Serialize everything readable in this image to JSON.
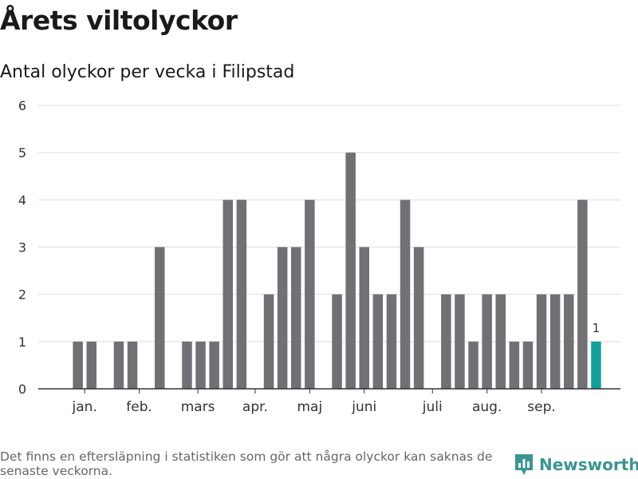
{
  "title": "Årets viltolyckor",
  "subtitle": "Antal olyckor per vecka i Filipstad",
  "footnote": "Det finns en eftersläpning i statistiken som gör att några olyckor kan saknas de senaste veckorna.",
  "brand": "Newsworthy",
  "colors": {
    "bar": "#707075",
    "highlight": "#12a19a",
    "grid": "#dddddd",
    "axis": "#333333",
    "brand": "#3a9591"
  },
  "chart_data": {
    "type": "bar",
    "title": "Antal olyckor per vecka i Filipstad",
    "xlabel": "",
    "ylabel": "",
    "ylim": [
      0,
      6
    ],
    "yticks": [
      0,
      1,
      2,
      3,
      4,
      5,
      6
    ],
    "grid": true,
    "weeks": [
      1,
      2,
      3,
      4,
      5,
      6,
      7,
      8,
      9,
      10,
      11,
      12,
      13,
      14,
      15,
      16,
      17,
      18,
      19,
      20,
      21,
      22,
      23,
      24,
      25,
      26,
      27,
      28,
      29,
      30,
      31,
      32,
      33,
      34,
      35,
      36,
      37,
      38,
      39,
      40
    ],
    "values": [
      0,
      1,
      1,
      0,
      1,
      1,
      0,
      3,
      0,
      1,
      1,
      1,
      4,
      4,
      0,
      2,
      3,
      3,
      4,
      0,
      2,
      5,
      3,
      2,
      2,
      4,
      3,
      0,
      2,
      2,
      1,
      2,
      2,
      1,
      1,
      2,
      2,
      2,
      4,
      1
    ],
    "highlight_index": 39,
    "highlight_label": "1",
    "month_labels": [
      {
        "label": "jan.",
        "week": 2.5
      },
      {
        "label": "feb.",
        "week": 6.5
      },
      {
        "label": "mars",
        "week": 10.8
      },
      {
        "label": "apr.",
        "week": 15
      },
      {
        "label": "maj",
        "week": 19
      },
      {
        "label": "juni",
        "week": 23
      },
      {
        "label": "juli",
        "week": 28
      },
      {
        "label": "aug.",
        "week": 32
      },
      {
        "label": "sep.",
        "week": 36
      }
    ]
  }
}
